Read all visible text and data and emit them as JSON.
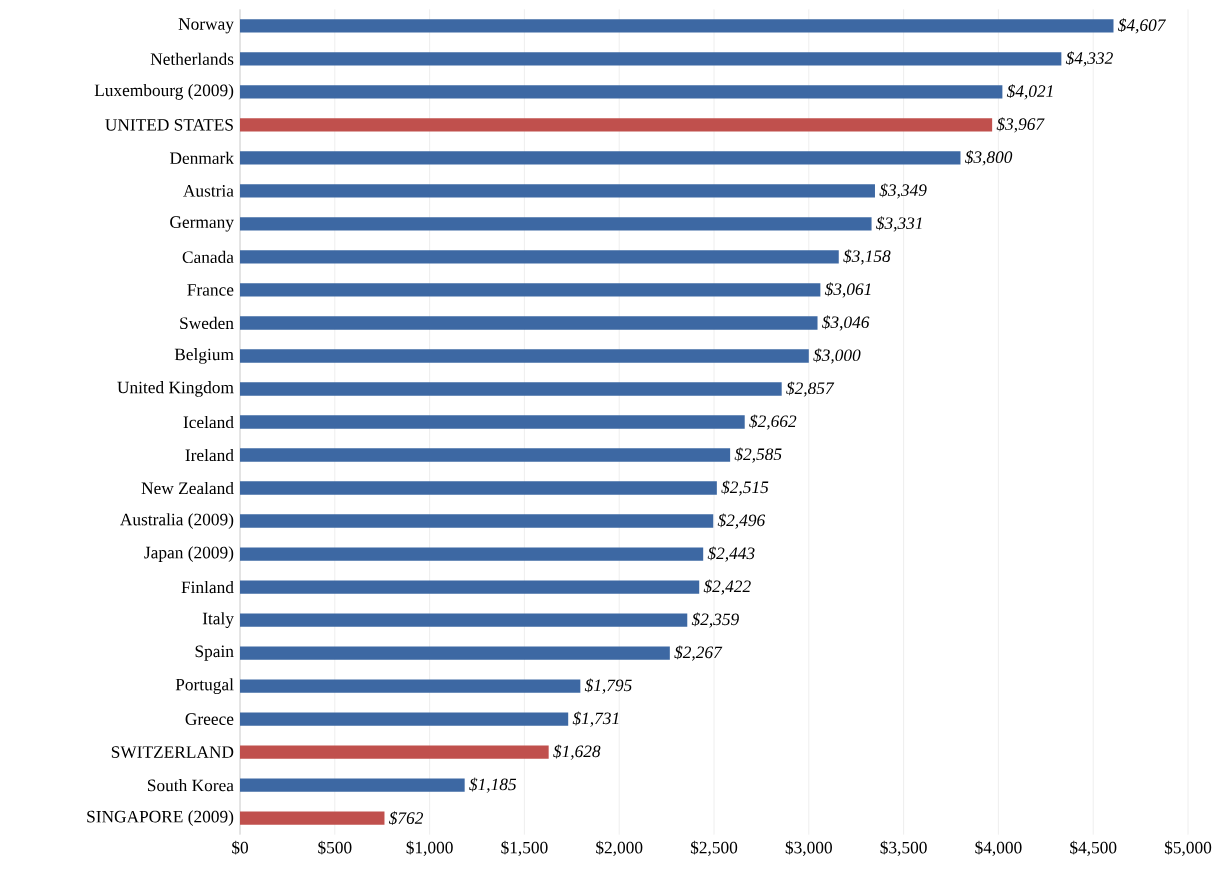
{
  "chart_data": {
    "type": "bar",
    "orientation": "horizontal",
    "categories": [
      "Norway",
      "Netherlands",
      "Luxembourg (2009)",
      "UNITED STATES",
      "Denmark",
      "Austria",
      "Germany",
      "Canada",
      "France",
      "Sweden",
      "Belgium",
      "United Kingdom",
      "Iceland",
      "Ireland",
      "New Zealand",
      "Australia (2009)",
      "Japan (2009)",
      "Finland",
      "Italy",
      "Spain",
      "Portugal",
      "Greece",
      "SWITZERLAND",
      "South Korea",
      "SINGAPORE (2009)"
    ],
    "values": [
      4607,
      4332,
      4021,
      3967,
      3800,
      3349,
      3331,
      3158,
      3061,
      3046,
      3000,
      2857,
      2662,
      2585,
      2515,
      2496,
      2443,
      2422,
      2359,
      2267,
      1795,
      1731,
      1628,
      1185,
      762
    ],
    "value_labels": [
      "$4,607",
      "$4,332",
      "$4,021",
      "$3,967",
      "$3,800",
      "$3,349",
      "$3,331",
      "$3,158",
      "$3,061",
      "$3,046",
      "$3,000",
      "$2,857",
      "$2,662",
      "$2,585",
      "$2,515",
      "$2,496",
      "$2,443",
      "$2,422",
      "$2,359",
      "$2,267",
      "$1,795",
      "$1,731",
      "$1,628",
      "$1,185",
      "$762"
    ],
    "colors": [
      "#3d68a3",
      "#3d68a3",
      "#3d68a3",
      "#c0504d",
      "#3d68a3",
      "#3d68a3",
      "#3d68a3",
      "#3d68a3",
      "#3d68a3",
      "#3d68a3",
      "#3d68a3",
      "#3d68a3",
      "#3d68a3",
      "#3d68a3",
      "#3d68a3",
      "#3d68a3",
      "#3d68a3",
      "#3d68a3",
      "#3d68a3",
      "#3d68a3",
      "#3d68a3",
      "#3d68a3",
      "#c0504d",
      "#3d68a3",
      "#c0504d"
    ],
    "xlim": [
      0,
      5000
    ],
    "xticks": [
      {
        "value": 0,
        "label": "$0"
      },
      {
        "value": 500,
        "label": "$500"
      },
      {
        "value": 1000,
        "label": "$1,000"
      },
      {
        "value": 1500,
        "label": "$1,500"
      },
      {
        "value": 2000,
        "label": "$2,000"
      },
      {
        "value": 2500,
        "label": "$2,500"
      },
      {
        "value": 3000,
        "label": "$3,000"
      },
      {
        "value": 3500,
        "label": "$3,500"
      },
      {
        "value": 4000,
        "label": "$4,000"
      },
      {
        "value": 4500,
        "label": "$4,500"
      },
      {
        "value": 5000,
        "label": "$5,000"
      }
    ],
    "grid": "x"
  }
}
